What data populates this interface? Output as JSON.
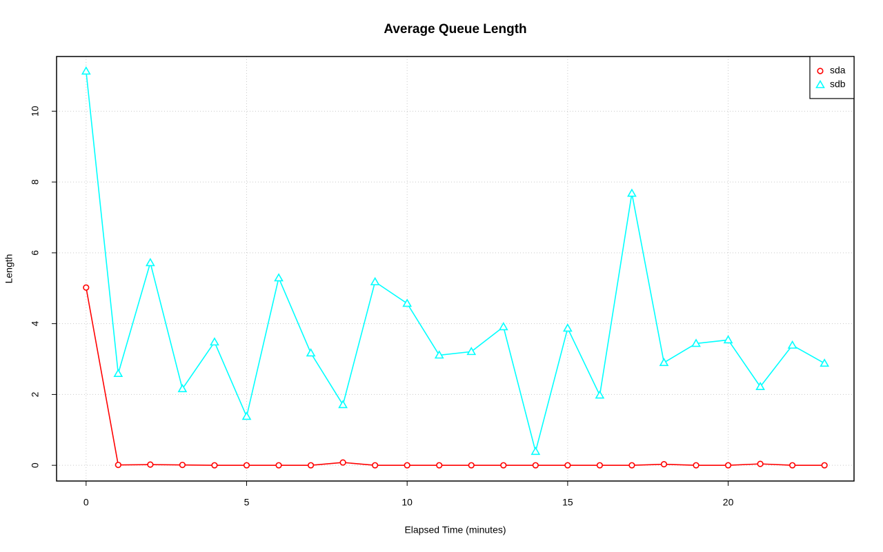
{
  "chart_data": {
    "type": "line",
    "title": "Average Queue Length",
    "x_label": "Elapsed Time (minutes)",
    "y_label": "Length",
    "x": [
      0,
      1,
      2,
      3,
      4,
      5,
      6,
      7,
      8,
      9,
      10,
      11,
      12,
      13,
      14,
      15,
      16,
      17,
      18,
      19,
      20,
      21,
      22,
      23
    ],
    "series": [
      {
        "name": "sda",
        "color": "#ff0000",
        "marker": "circle",
        "values": [
          5.02,
          0.01,
          0.02,
          0.01,
          0,
          0,
          0,
          0,
          0.08,
          0,
          0,
          0,
          0,
          0,
          0,
          0,
          0,
          0,
          0.03,
          0,
          0,
          0.04,
          0,
          0
        ]
      },
      {
        "name": "sdb",
        "color": "#00ffff",
        "marker": "triangle",
        "values": [
          11.13,
          2.59,
          5.72,
          2.16,
          3.48,
          1.38,
          5.29,
          3.17,
          1.71,
          5.18,
          4.57,
          3.11,
          3.21,
          3.91,
          0.39,
          3.87,
          1.98,
          7.68,
          2.9,
          3.44,
          3.54,
          2.22,
          3.39,
          2.88
        ]
      }
    ],
    "xlim": [
      -0.92,
      23.92
    ],
    "ylim": [
      -0.444,
      11.544
    ],
    "xticks": [
      0,
      5,
      10,
      15,
      20
    ],
    "yticks": [
      0,
      2,
      4,
      6,
      8,
      10
    ],
    "grid": true,
    "legend": "top-right"
  }
}
